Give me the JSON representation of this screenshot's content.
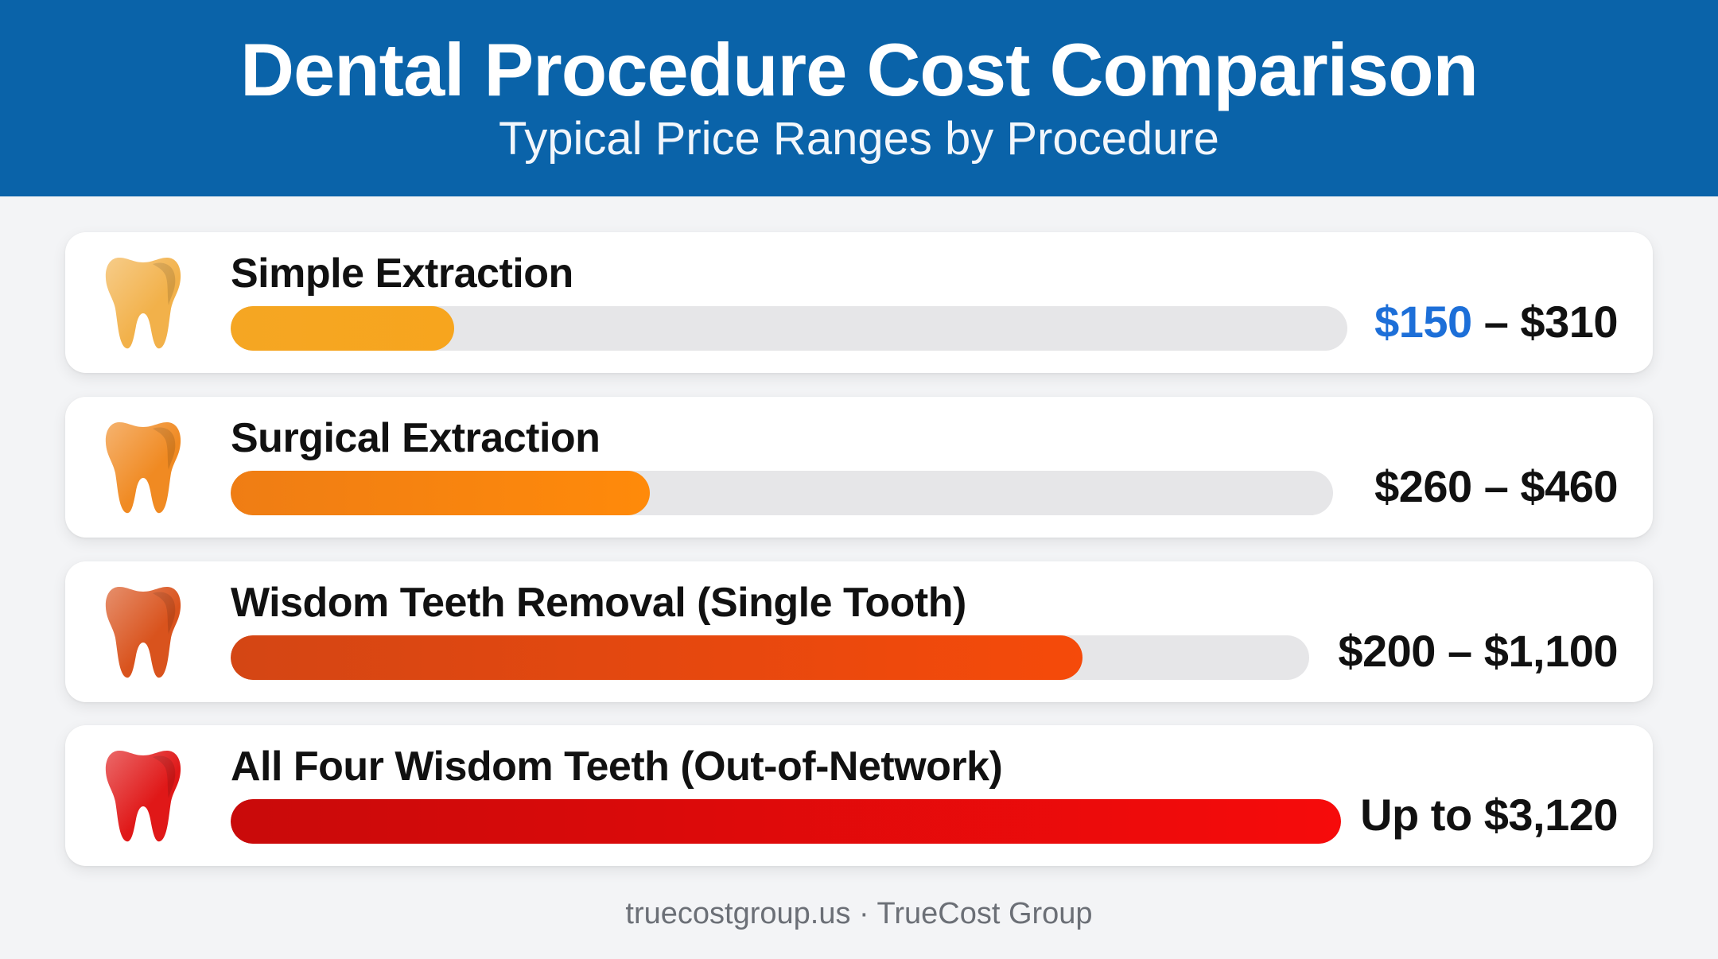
{
  "header": {
    "title": "Dental Procedure Cost Comparison",
    "subtitle": "Typical Price Ranges by Procedure"
  },
  "chart_data": {
    "type": "bar",
    "title": "Dental Procedure Cost Comparison",
    "subtitle": "Typical Price Ranges by Procedure",
    "xlabel": "",
    "ylabel": "",
    "grid": false,
    "legend": "none",
    "categories": [
      "Simple Extraction",
      "Surgical Extraction",
      "Wisdom Teeth Removal (Single Tooth)",
      "All Four Wisdom Teeth (Out-of-Network)"
    ],
    "items": [
      {
        "label": "Simple Extraction",
        "low_text": "$150",
        "high_text": "$310",
        "range_text": "",
        "low": 150,
        "high": 310,
        "bar_fill_fraction": 0.2,
        "colors": [
          "#f5a623",
          "#f7a51e"
        ],
        "tooth_color": "#f2b14a",
        "low_highlight": "#1d6fd8"
      },
      {
        "label": "Surgical Extraction",
        "low_text": "$260",
        "high_text": "$460",
        "range_text": "",
        "low": 260,
        "high": 460,
        "bar_fill_fraction": 0.38,
        "colors": [
          "#ef7d14",
          "#ff8a0a"
        ],
        "tooth_color": "#f08a22",
        "low_highlight": ""
      },
      {
        "label": "Wisdom Teeth Removal (Single Tooth)",
        "low_text": "$200",
        "high_text": "$1,100",
        "range_text": "",
        "low": 200,
        "high": 1100,
        "bar_fill_fraction": 0.79,
        "colors": [
          "#d44614",
          "#f54a0a"
        ],
        "tooth_color": "#d9531d",
        "low_highlight": ""
      },
      {
        "label": "All Four Wisdom Teeth (Out-of-Network)",
        "low_text": "",
        "high_text": "$3,120",
        "range_text": "Up to $3,120",
        "low": null,
        "high": 3120,
        "bar_fill_fraction": 1.0,
        "colors": [
          "#c90a0a",
          "#f60b0b"
        ],
        "tooth_color": "#e01818",
        "low_highlight": ""
      }
    ]
  },
  "footer": {
    "text": "truecostgroup.us · TrueCost Group"
  },
  "icons": {
    "tooth": "tooth-icon"
  }
}
